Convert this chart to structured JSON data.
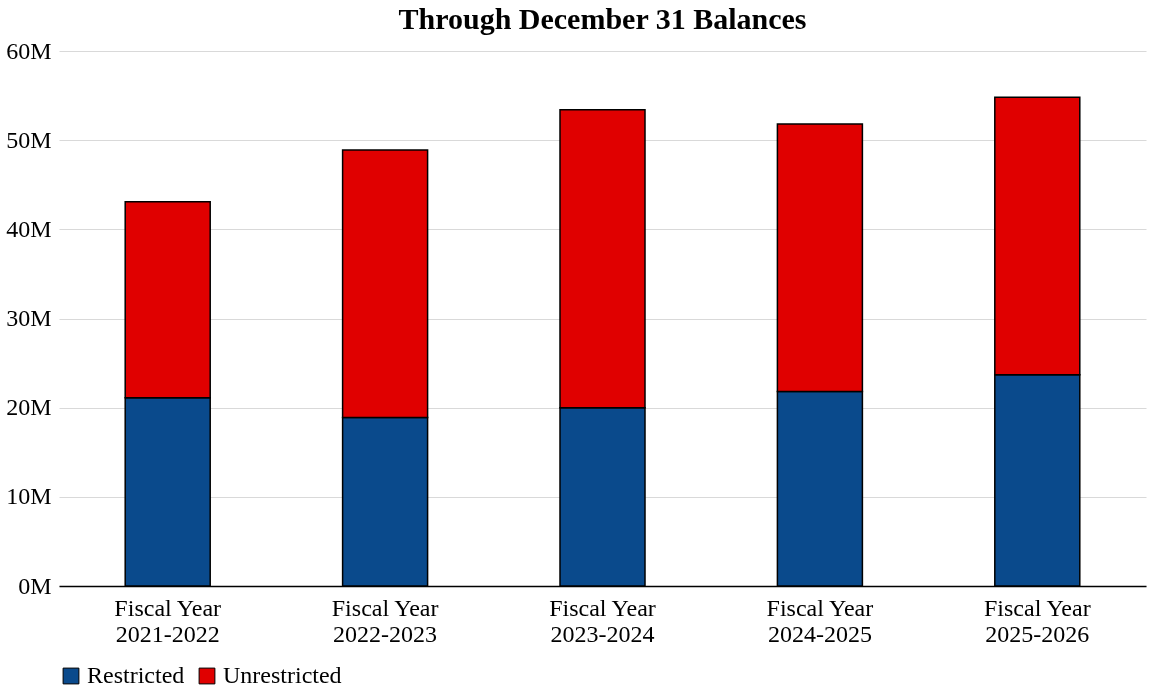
{
  "chart_data": {
    "type": "bar",
    "title": "Through December 31 Balances",
    "stacked": true,
    "categories": [
      "Fiscal Year\n2021-2022",
      "Fiscal Year\n2022-2023",
      "Fiscal Year\n2023-2024",
      "Fiscal Year\n2024-2025",
      "Fiscal Year\n2025-2026"
    ],
    "series": [
      {
        "name": "Restricted",
        "color": "#0a4a8c",
        "values": [
          21.1,
          18.9,
          20.0,
          21.8,
          23.7
        ]
      },
      {
        "name": "Unrestricted",
        "color": "#e00000",
        "values": [
          22.0,
          30.0,
          33.4,
          30.0,
          31.1
        ]
      }
    ],
    "ylim": [
      0,
      60
    ],
    "yticks": [
      {
        "value": 0,
        "label": "0M"
      },
      {
        "value": 10,
        "label": "10M"
      },
      {
        "value": 20,
        "label": "20M"
      },
      {
        "value": 30,
        "label": "30M"
      },
      {
        "value": 40,
        "label": "40M"
      },
      {
        "value": 50,
        "label": "50M"
      },
      {
        "value": 60,
        "label": "60M"
      }
    ],
    "grid": "y",
    "legend": "bottom"
  }
}
